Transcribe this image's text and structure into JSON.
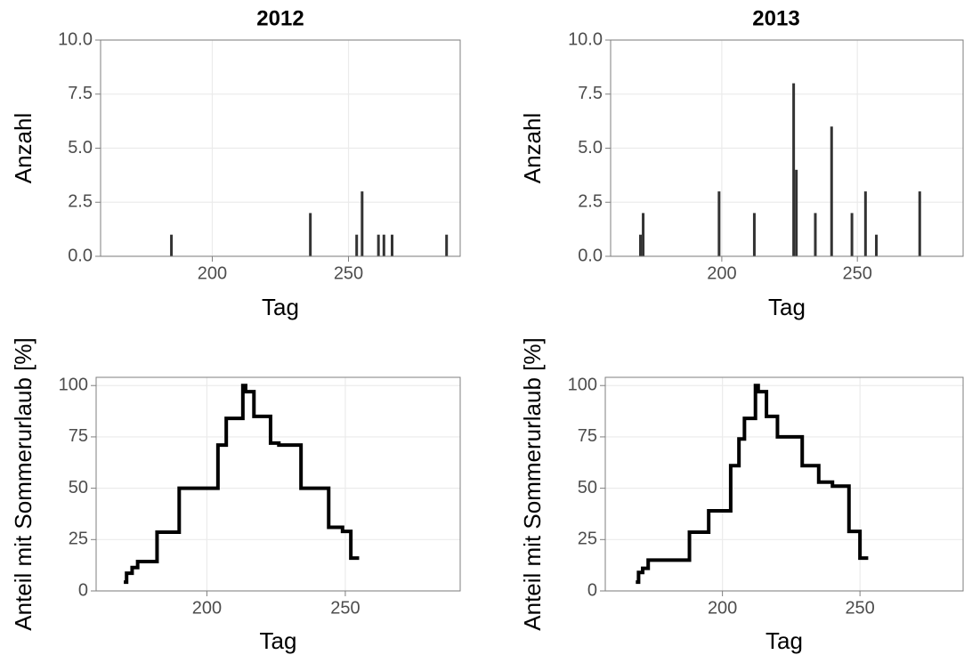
{
  "chart_data": [
    {
      "type": "bar",
      "title": "2012",
      "x_label": "Tag",
      "y_label": "Anzahl",
      "color": "#333333",
      "grid": true,
      "x": [
        185,
        236,
        253,
        255,
        261,
        263,
        266,
        286
      ],
      "values": [
        1,
        2,
        1,
        3,
        1,
        1,
        1,
        1
      ],
      "xlim": [
        159,
        291
      ],
      "ylim": [
        0,
        10
      ],
      "xticks": [
        200,
        250
      ],
      "yticks": [
        {
          "value": 0,
          "label": "0.0"
        },
        2.5,
        {
          "value": 5,
          "label": "5.0"
        },
        7.5,
        {
          "value": 10,
          "label": "10.0"
        }
      ]
    },
    {
      "type": "bar",
      "title": "2013",
      "x_label": "Tag",
      "y_label": "Anzahl",
      "color": "#333333",
      "grid": true,
      "x": [
        170,
        171,
        199,
        212,
        226.5,
        227.5,
        234.5,
        240.5,
        248,
        253,
        257,
        273
      ],
      "values": [
        1,
        2,
        3,
        2,
        8,
        4,
        2,
        6,
        2,
        3,
        1,
        3
      ],
      "xlim": [
        159,
        289
      ],
      "ylim": [
        0,
        10
      ],
      "xticks": [
        200,
        250
      ],
      "yticks": [
        {
          "value": 0,
          "label": "0.0"
        },
        2.5,
        {
          "value": 5,
          "label": "5.0"
        },
        7.5,
        {
          "value": 10,
          "label": "10.0"
        }
      ]
    },
    {
      "type": "line",
      "step": "post",
      "x_label": "Tag",
      "y_label": "Anteil mit Sommerurlaub [%]",
      "color": "#000000",
      "grid": true,
      "x": [
        170,
        171,
        173,
        175,
        182,
        190,
        204,
        207,
        213,
        214,
        217,
        223,
        226,
        234,
        244,
        249,
        252,
        255
      ],
      "values": [
        4.3,
        8.6,
        11.4,
        14.3,
        28.6,
        50,
        71,
        84,
        100,
        97,
        85,
        72,
        71,
        50,
        31,
        29,
        16,
        16
      ],
      "xlim": [
        160,
        291.5
      ],
      "ylim": [
        0,
        104
      ],
      "xticks": [
        200,
        250
      ],
      "yticks": [
        0,
        25,
        50,
        75,
        100
      ]
    },
    {
      "type": "line",
      "step": "post",
      "x_label": "Tag",
      "y_label": "Anteil mit Sommerurlaub [%]",
      "color": "#000000",
      "grid": true,
      "x": [
        168.5,
        169.5,
        171,
        173,
        188,
        195,
        203,
        206,
        208,
        212,
        213,
        216,
        220,
        229,
        235,
        240,
        246,
        250,
        253
      ],
      "values": [
        4.3,
        9,
        11,
        15,
        28.6,
        39,
        61,
        74,
        84,
        100,
        97,
        85,
        75,
        61,
        53,
        51,
        29,
        16,
        16
      ],
      "xlim": [
        157.4,
        287.5
      ],
      "ylim": [
        0,
        104
      ],
      "xticks": [
        200,
        250
      ],
      "yticks": [
        0,
        25,
        50,
        75,
        100
      ]
    }
  ]
}
